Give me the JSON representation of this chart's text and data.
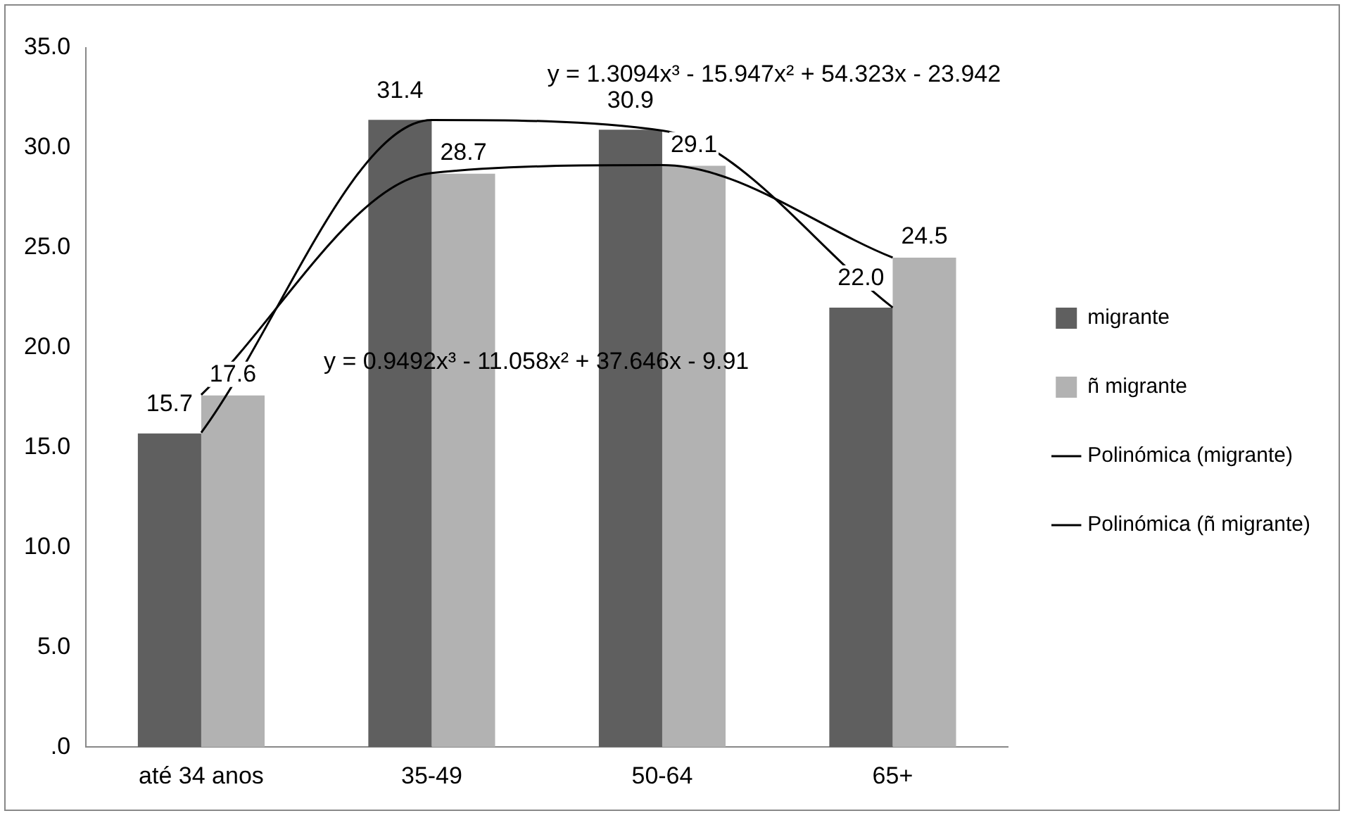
{
  "chart_data": {
    "type": "bar",
    "categories": [
      "até 34 anos",
      "35-49",
      "50-64",
      "65+"
    ],
    "series": [
      {
        "name": "migrante",
        "color": "#5f5f5f",
        "values": [
          15.7,
          31.4,
          30.9,
          22.0
        ],
        "value_labels": [
          "15.7",
          "31.4",
          "30.9",
          "22.0"
        ]
      },
      {
        "name": "ñ migrante",
        "color": "#b2b2b2",
        "values": [
          17.6,
          28.7,
          29.1,
          24.5
        ],
        "value_labels": [
          "17.6",
          "28.7",
          "29.1",
          "24.5"
        ]
      },
      {
        "name": "Polinómica (migrante)",
        "type": "line",
        "color": "#000000",
        "values": [
          15.74,
          31.39,
          30.86,
          22.0
        ]
      },
      {
        "name": "Polinómica (ñ migrante)",
        "type": "line",
        "color": "#000000",
        "values": [
          17.63,
          28.74,
          29.13,
          24.5
        ]
      }
    ],
    "annotations": [
      "y = 1.3094x³ - 15.947x² + 54.323x - 23.942",
      "y = 0.9492x³ - 11.058x² + 37.646x - 9.91"
    ],
    "ylim": [
      0,
      35
    ],
    "yticks": [
      {
        "value": 0,
        "label": ".0"
      },
      {
        "value": 5,
        "label": "5.0"
      },
      {
        "value": 10,
        "label": "10.0"
      },
      {
        "value": 15,
        "label": "15.0"
      },
      {
        "value": 20,
        "label": "20.0"
      },
      {
        "value": 25,
        "label": "25.0"
      },
      {
        "value": 30,
        "label": "30.0"
      },
      {
        "value": 35,
        "label": "35.0"
      }
    ],
    "grid": false,
    "legend": "right",
    "marker": "none",
    "line_style": "solid"
  }
}
